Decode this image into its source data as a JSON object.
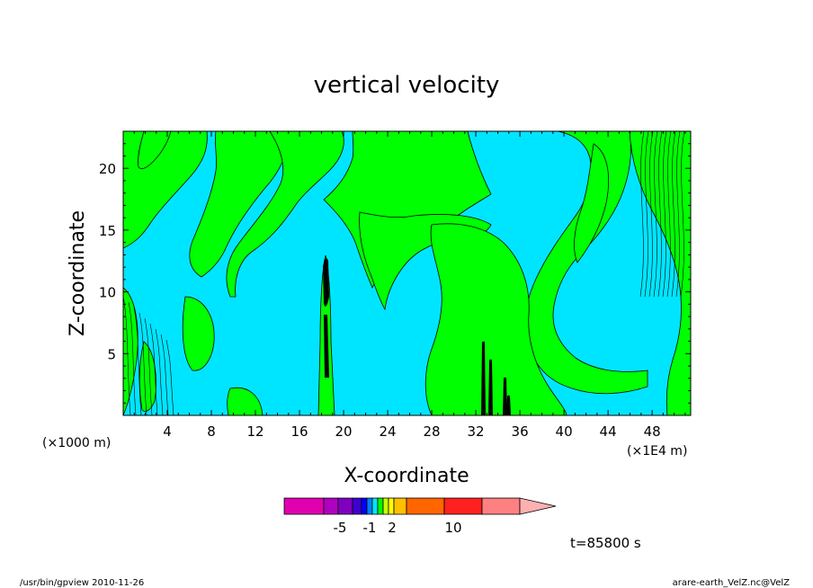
{
  "chart_data": {
    "type": "contour",
    "title": "vertical velocity",
    "xlabel": "X-coordinate",
    "ylabel": "Z-coordinate",
    "x_unit_left": "(×1000 m)",
    "x_unit_right": "(×1E4 m)",
    "xlim": [
      0,
      51.5
    ],
    "ylim": [
      0,
      23
    ],
    "x_ticks": [
      4,
      8,
      12,
      16,
      20,
      24,
      28,
      32,
      36,
      40,
      44,
      48
    ],
    "y_ticks": [
      5,
      10,
      15,
      20
    ],
    "colors": {
      "negative_weak": "#00e5ff",
      "positive_weak": "#00ff00",
      "contour_line": "#000000"
    },
    "colorbar": {
      "segments": [
        {
          "color": "#e000b0"
        },
        {
          "color": "#b000c0"
        },
        {
          "color": "#8000c0"
        },
        {
          "color": "#4000d0"
        },
        {
          "color": "#0000ff"
        },
        {
          "color": "#0080ff"
        },
        {
          "color": "#00e5ff"
        },
        {
          "color": "#00ff00"
        },
        {
          "color": "#c8ff00"
        },
        {
          "color": "#ffff00"
        },
        {
          "color": "#ffc000"
        },
        {
          "color": "#ff6600"
        },
        {
          "color": "#ff2020"
        },
        {
          "color": "#ff8080"
        },
        {
          "color": "#ffb0b0"
        }
      ],
      "labels": [
        "-5",
        "-1",
        "2",
        "10"
      ]
    },
    "time_label": "t=85800 s"
  },
  "footer": {
    "left": "/usr/bin/gpview 2010-11-26",
    "right": "arare-earth_VelZ.nc@VelZ"
  }
}
